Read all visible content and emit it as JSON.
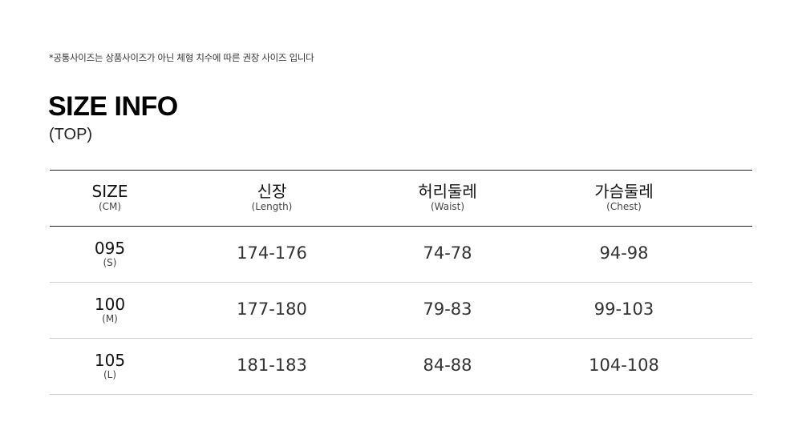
{
  "notice": "*공통사이즈는 상품사이즈가 아닌 체형 치수에 따른 권장 사이즈 입니다",
  "title": "SIZE INFO",
  "subtitle": "(TOP)",
  "table": {
    "headers": [
      {
        "label": "SIZE",
        "sub": "(CM)"
      },
      {
        "label": "신장",
        "sub": "(Length)"
      },
      {
        "label": "허리둘레",
        "sub": "(Waist)"
      },
      {
        "label": "가슴둘레",
        "sub": "(Chest)"
      }
    ],
    "rows": [
      {
        "size": "095",
        "size_sub": "(S)",
        "length": "174-176",
        "waist": "74-78",
        "chest": "94-98"
      },
      {
        "size": "100",
        "size_sub": "(M)",
        "length": "177-180",
        "waist": "79-83",
        "chest": "99-103"
      },
      {
        "size": "105",
        "size_sub": "(L)",
        "length": "181-183",
        "waist": "84-88",
        "chest": "104-108"
      }
    ]
  }
}
